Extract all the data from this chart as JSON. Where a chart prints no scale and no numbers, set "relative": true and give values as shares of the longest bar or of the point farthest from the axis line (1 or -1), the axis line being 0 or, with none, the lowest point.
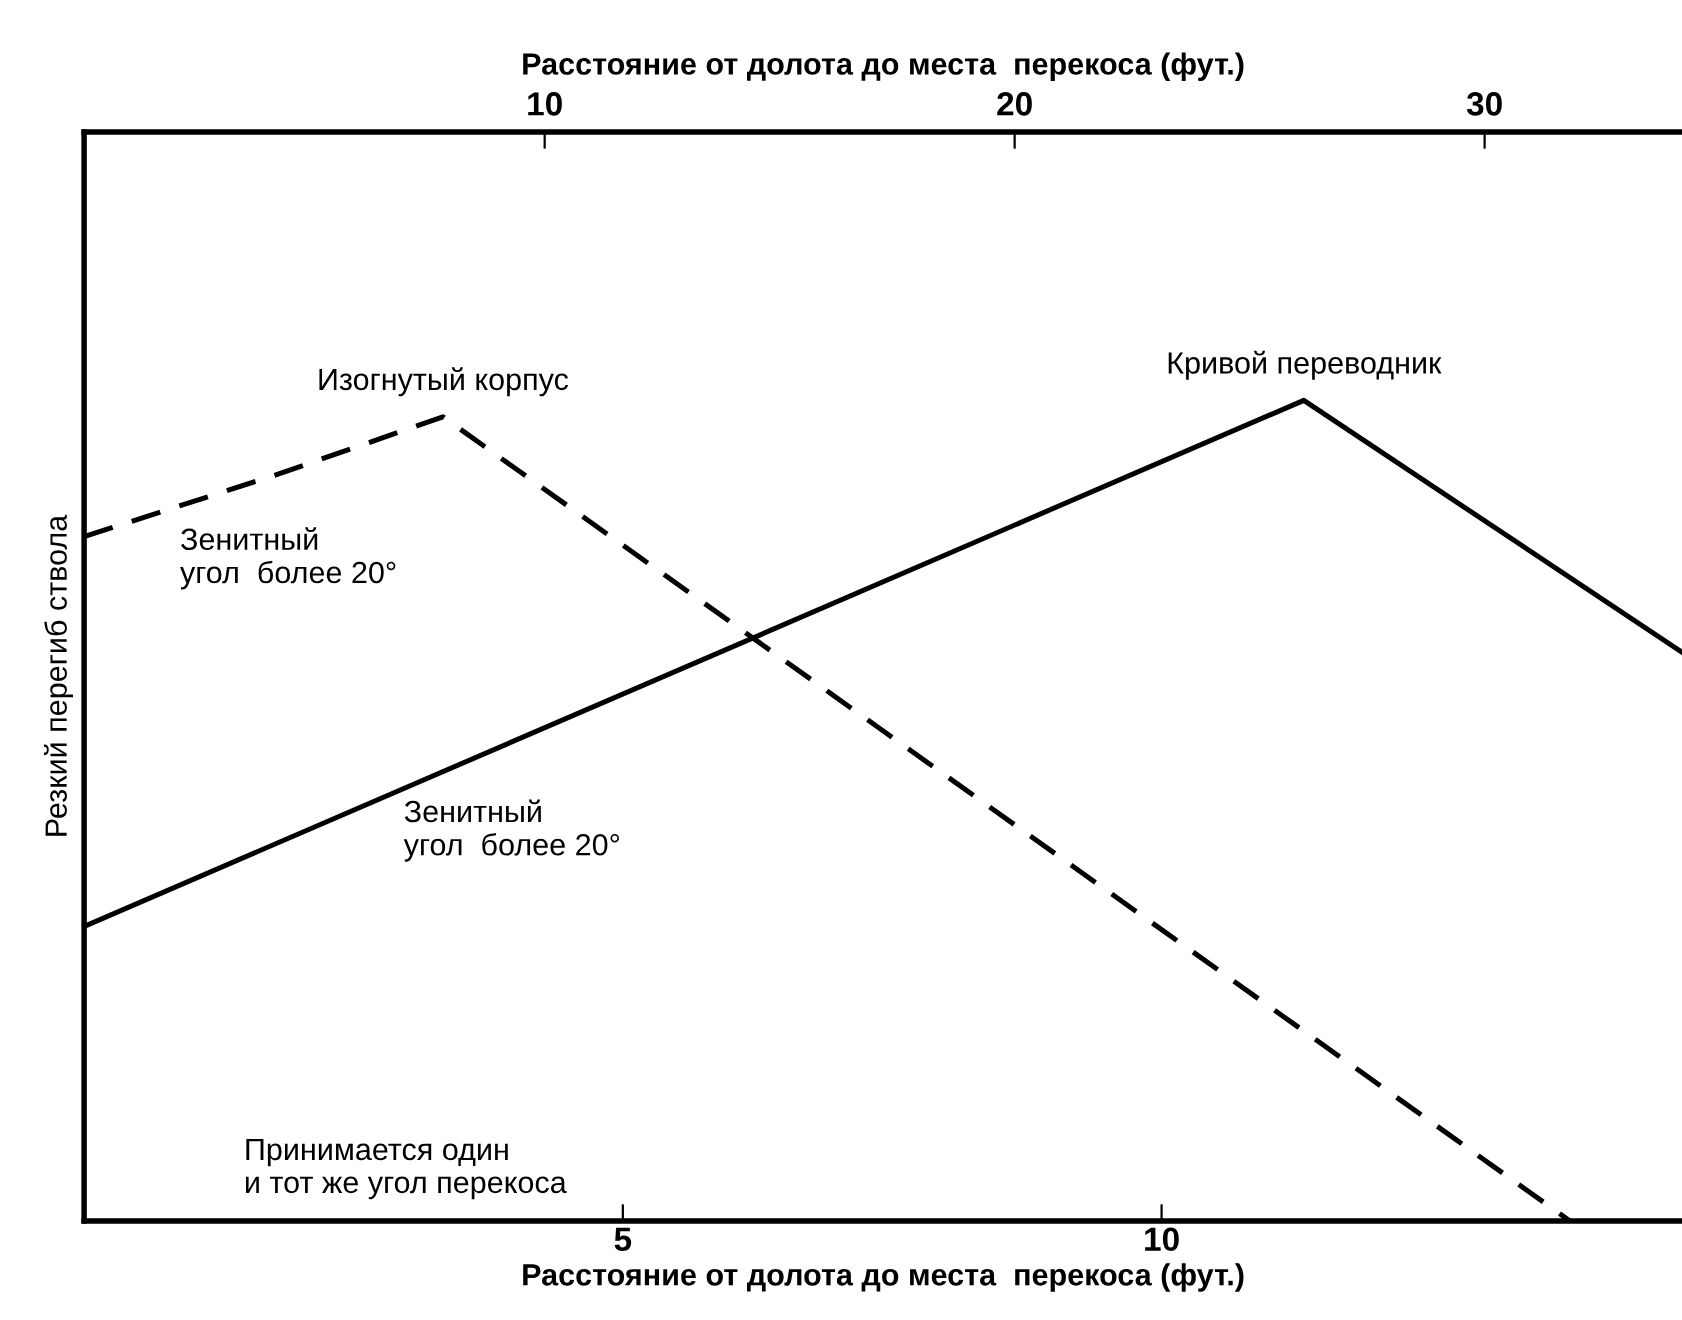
{
  "chart_data": {
    "type": "line",
    "relative": true,
    "xlabel": "Расстояние от долота до места  перекоса (фут.)",
    "x2label": "Расстояние от долота до места  перекоса (фут.)",
    "ylabel": "Резкий перегиб ствола",
    "xlim": [
      0,
      14.83
    ],
    "xticks": [
      5,
      10
    ],
    "x2lim": [
      0.2,
      34.2
    ],
    "x2ticks": [
      10,
      20,
      30
    ],
    "grid": false,
    "line_style": "solid",
    "marker": "none",
    "series": [
      {
        "name": "Кривой переводник",
        "color": "#000000",
        "x": [
          0,
          11.32,
          14.83
        ],
        "values": [
          0.359,
          1.0,
          0.693
        ]
      },
      {
        "name": "Изогнутый корпус",
        "color": "#000000",
        "line_style": "dashed",
        "x": [
          0,
          1.8,
          3.33,
          13.79
        ],
        "values": [
          0.834,
          0.91,
          0.98,
          0
        ]
      }
    ],
    "annotations": [
      "Зенитный\nугол  более 20°",
      "Зенитный\nугол  более 20°",
      "Принимается один\nи тот же угол перекоса"
    ]
  }
}
